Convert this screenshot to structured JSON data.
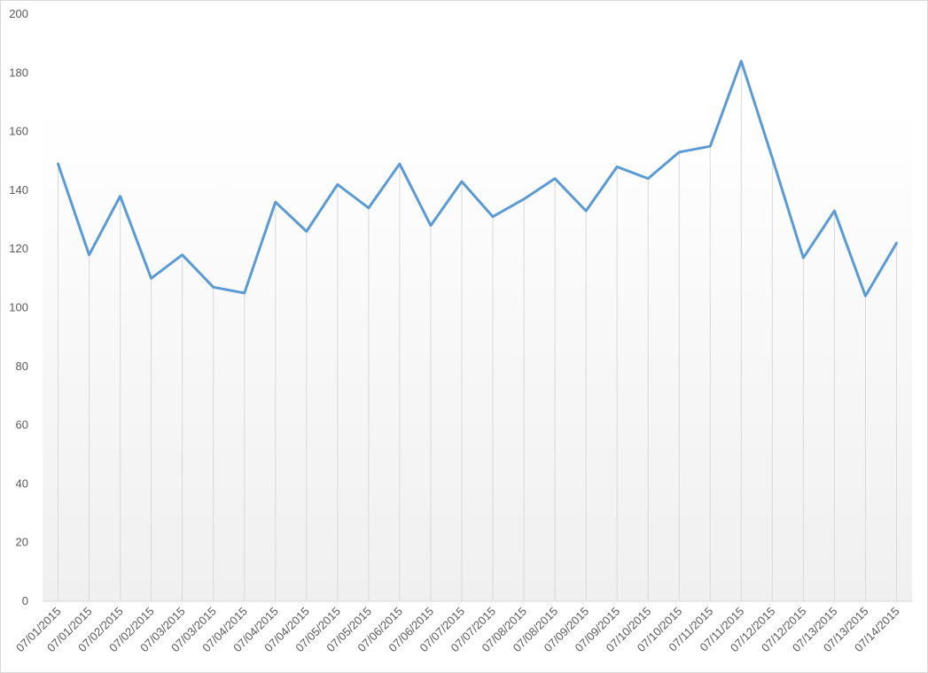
{
  "chart_data": {
    "type": "line",
    "categories": [
      "07/01/2015",
      "07/01/2015",
      "07/02/2015",
      "07/02/2015",
      "07/03/2015",
      "07/03/2015",
      "07/04/2015",
      "07/04/2015",
      "07/04/2015",
      "07/05/2015",
      "07/05/2015",
      "07/06/2015",
      "07/06/2015",
      "07/07/2015",
      "07/07/2015",
      "07/08/2015",
      "07/08/2015",
      "07/09/2015",
      "07/09/2015",
      "07/10/2015",
      "07/10/2015",
      "07/11/2015",
      "07/11/2015",
      "07/12/2015",
      "07/12/2015",
      "07/13/2015",
      "07/13/2015",
      "07/14/2015"
    ],
    "values": [
      149,
      118,
      138,
      110,
      118,
      107,
      105,
      136,
      126,
      142,
      134,
      149,
      128,
      143,
      131,
      137,
      144,
      133,
      148,
      144,
      153,
      155,
      184,
      151,
      117,
      133,
      104,
      122
    ],
    "color": "#5b9bd5",
    "ylim": [
      0,
      200
    ],
    "yticks": [
      0,
      20,
      40,
      60,
      80,
      100,
      120,
      140,
      160,
      180,
      200
    ],
    "grid": {
      "x": true,
      "y": false
    }
  }
}
